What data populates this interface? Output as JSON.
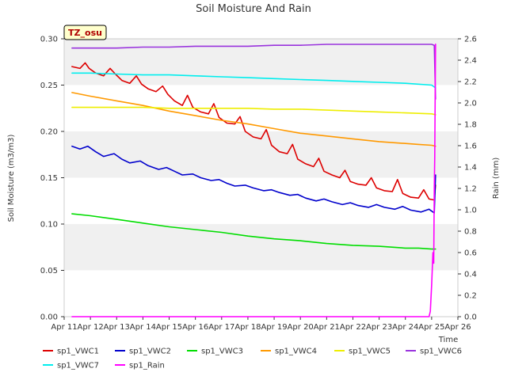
{
  "chart_data": {
    "type": "line",
    "title": "Soil Moisture And Rain",
    "badge": "TZ_osu",
    "xlabel": "Time",
    "ylabel_left": "Soil Moisture (m3/m3)",
    "ylabel_right": "Rain (mm)",
    "ylim_left": [
      0,
      0.3
    ],
    "ylim_right": [
      0,
      2.6
    ],
    "yticks_left": [
      "0.00",
      "0.05",
      "0.10",
      "0.15",
      "0.20",
      "0.25",
      "0.30"
    ],
    "yticks_right": [
      "0.0",
      "0.2",
      "0.4",
      "0.6",
      "0.8",
      "1.0",
      "1.2",
      "1.4",
      "1.6",
      "1.8",
      "2.0",
      "2.2",
      "2.4",
      "2.6"
    ],
    "xlim": [
      11,
      26
    ],
    "xticks": [
      "Apr 11",
      "Apr 12",
      "Apr 13",
      "Apr 14",
      "Apr 15",
      "Apr 16",
      "Apr 17",
      "Apr 18",
      "Apr 19",
      "Apr 20",
      "Apr 21",
      "Apr 22",
      "Apr 23",
      "Apr 24",
      "Apr 25",
      "Apr 26"
    ],
    "grid": "horizontal bands",
    "legend_position": "bottom",
    "series": [
      {
        "name": "sp1_VWC1",
        "color": "#dd0000",
        "axis": "left",
        "x": [
          11.3,
          11.6,
          11.8,
          11.95,
          12.2,
          12.5,
          12.75,
          12.95,
          13.2,
          13.5,
          13.75,
          13.95,
          14.2,
          14.5,
          14.75,
          14.95,
          15.2,
          15.5,
          15.7,
          15.9,
          16.2,
          16.5,
          16.7,
          16.9,
          17.2,
          17.5,
          17.7,
          17.9,
          18.2,
          18.5,
          18.7,
          18.9,
          19.2,
          19.5,
          19.7,
          19.9,
          20.2,
          20.5,
          20.7,
          20.9,
          21.2,
          21.5,
          21.7,
          21.9,
          22.2,
          22.5,
          22.7,
          22.9,
          23.2,
          23.5,
          23.7,
          23.9,
          24.2,
          24.5,
          24.7,
          24.9,
          25.1,
          25.15
        ],
        "y": [
          0.27,
          0.268,
          0.274,
          0.268,
          0.263,
          0.26,
          0.268,
          0.262,
          0.255,
          0.252,
          0.26,
          0.251,
          0.246,
          0.243,
          0.249,
          0.24,
          0.233,
          0.228,
          0.239,
          0.226,
          0.221,
          0.219,
          0.23,
          0.215,
          0.209,
          0.208,
          0.216,
          0.2,
          0.194,
          0.192,
          0.202,
          0.185,
          0.178,
          0.176,
          0.186,
          0.17,
          0.165,
          0.162,
          0.171,
          0.157,
          0.153,
          0.15,
          0.158,
          0.146,
          0.143,
          0.142,
          0.15,
          0.139,
          0.136,
          0.135,
          0.148,
          0.133,
          0.129,
          0.128,
          0.137,
          0.127,
          0.126,
          0.142
        ]
      },
      {
        "name": "sp1_VWC2",
        "color": "#0000cc",
        "axis": "left",
        "x": [
          11.3,
          11.6,
          11.9,
          12.2,
          12.5,
          12.9,
          13.2,
          13.5,
          13.9,
          14.2,
          14.6,
          14.9,
          15.2,
          15.5,
          15.9,
          16.2,
          16.6,
          16.9,
          17.2,
          17.5,
          17.9,
          18.2,
          18.6,
          18.9,
          19.2,
          19.6,
          19.9,
          20.2,
          20.6,
          20.9,
          21.2,
          21.6,
          21.9,
          22.2,
          22.6,
          22.9,
          23.2,
          23.6,
          23.9,
          24.2,
          24.6,
          24.9,
          25.1,
          25.15
        ],
        "y": [
          0.184,
          0.181,
          0.184,
          0.178,
          0.173,
          0.176,
          0.17,
          0.166,
          0.168,
          0.163,
          0.159,
          0.161,
          0.157,
          0.153,
          0.154,
          0.15,
          0.147,
          0.148,
          0.144,
          0.141,
          0.142,
          0.139,
          0.136,
          0.137,
          0.134,
          0.131,
          0.132,
          0.128,
          0.125,
          0.127,
          0.124,
          0.121,
          0.123,
          0.12,
          0.118,
          0.121,
          0.118,
          0.116,
          0.119,
          0.115,
          0.113,
          0.116,
          0.112,
          0.153
        ]
      },
      {
        "name": "sp1_VWC3",
        "color": "#00dd00",
        "axis": "left",
        "x": [
          11.3,
          12.0,
          13.0,
          14.0,
          15.0,
          16.0,
          17.0,
          18.0,
          19.0,
          20.0,
          21.0,
          22.0,
          23.0,
          24.0,
          24.5,
          25.0,
          25.15
        ],
        "y": [
          0.111,
          0.109,
          0.105,
          0.101,
          0.097,
          0.094,
          0.091,
          0.087,
          0.084,
          0.082,
          0.079,
          0.077,
          0.076,
          0.074,
          0.074,
          0.073,
          0.073
        ]
      },
      {
        "name": "sp1_VWC4",
        "color": "#ff9900",
        "axis": "left",
        "x": [
          11.3,
          12.0,
          13.0,
          14.0,
          15.0,
          16.0,
          17.0,
          18.0,
          19.0,
          20.0,
          21.0,
          22.0,
          23.0,
          24.0,
          24.5,
          25.0,
          25.15
        ],
        "y": [
          0.242,
          0.238,
          0.233,
          0.228,
          0.222,
          0.217,
          0.212,
          0.208,
          0.203,
          0.198,
          0.195,
          0.192,
          0.189,
          0.187,
          0.186,
          0.185,
          0.184
        ]
      },
      {
        "name": "sp1_VWC5",
        "color": "#eeee00",
        "axis": "left",
        "x": [
          11.3,
          12.0,
          13.0,
          14.0,
          15.0,
          16.0,
          17.0,
          18.0,
          19.0,
          20.0,
          21.0,
          22.0,
          23.0,
          24.0,
          25.0,
          25.15
        ],
        "y": [
          0.226,
          0.226,
          0.226,
          0.226,
          0.225,
          0.225,
          0.225,
          0.225,
          0.224,
          0.224,
          0.223,
          0.222,
          0.221,
          0.22,
          0.219,
          0.218
        ]
      },
      {
        "name": "sp1_VWC6",
        "color": "#9933dd",
        "axis": "left",
        "x": [
          11.3,
          12.0,
          13.0,
          14.0,
          15.0,
          16.0,
          17.0,
          18.0,
          19.0,
          20.0,
          21.0,
          22.0,
          23.0,
          24.0,
          25.0,
          25.1,
          25.15
        ],
        "y": [
          0.29,
          0.29,
          0.29,
          0.291,
          0.291,
          0.292,
          0.292,
          0.292,
          0.293,
          0.293,
          0.294,
          0.294,
          0.294,
          0.294,
          0.294,
          0.293,
          0.235
        ]
      },
      {
        "name": "sp1_VWC7",
        "color": "#00eeee",
        "axis": "left",
        "x": [
          11.3,
          12.0,
          13.0,
          14.0,
          15.0,
          16.0,
          17.0,
          18.0,
          19.0,
          20.0,
          21.0,
          22.0,
          23.0,
          24.0,
          25.0,
          25.15
        ],
        "y": [
          0.263,
          0.263,
          0.262,
          0.261,
          0.261,
          0.26,
          0.259,
          0.258,
          0.257,
          0.256,
          0.255,
          0.254,
          0.253,
          0.252,
          0.25,
          0.247
        ]
      },
      {
        "name": "sp1_Rain",
        "color": "#ff00ff",
        "axis": "right",
        "x": [
          11.3,
          24.9,
          24.95,
          25.0,
          25.05,
          25.08,
          25.1,
          25.12,
          25.15
        ],
        "y": [
          0.0,
          0.0,
          0.05,
          0.3,
          0.6,
          0.5,
          1.2,
          1.5,
          2.55
        ]
      }
    ]
  }
}
